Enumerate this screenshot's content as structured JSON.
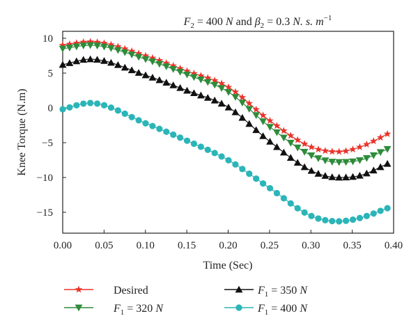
{
  "chart_data": {
    "type": "line",
    "title": {
      "f2_symbol": "F",
      "f2_sub": "2",
      "f2_value": " = 400 ",
      "f2_unit": "N",
      "and_text": " and ",
      "beta_symbol": "β",
      "beta_sub": "2",
      "beta_value": " = 0.3 ",
      "beta_unit": "N. s. m",
      "beta_exp": "−1"
    },
    "xlabel": "Time (Sec)",
    "ylabel": "Knee Torque (N.m)",
    "xlim": [
      0,
      0.4
    ],
    "ylim": [
      -18,
      11
    ],
    "x_ticks": [
      0.0,
      0.05,
      0.1,
      0.15,
      0.2,
      0.25,
      0.3,
      0.35,
      0.4
    ],
    "x_tick_labels": [
      "0.00",
      "0.05",
      "0.10",
      "0.15",
      "0.20",
      "0.25",
      "0.30",
      "0.35",
      "0.40"
    ],
    "y_ticks": [
      10,
      5,
      0,
      -5,
      -10,
      -15
    ],
    "y_tick_labels": [
      "10",
      "5",
      "0",
      "−5",
      "−10",
      "−15"
    ],
    "grid": false,
    "legend_position": "bottom",
    "series": [
      {
        "name": "Desired",
        "legend_main": "Desired",
        "marker": "star",
        "color": "#e8332a",
        "x": [
          0.0,
          0.033,
          0.1,
          0.15,
          0.2,
          0.25,
          0.3,
          0.333,
          0.36,
          0.395
        ],
        "y": [
          9.0,
          9.5,
          7.5,
          5.3,
          3.0,
          -1.8,
          -5.6,
          -6.3,
          -5.6,
          -3.6
        ]
      },
      {
        "name": "F1 = 320 N",
        "legend_sym": "F",
        "legend_sub": "1",
        "legend_rest": " = 320 ",
        "legend_unit": "N",
        "marker": "triangle-down",
        "color": "#2e8b3a",
        "x": [
          0.0,
          0.033,
          0.1,
          0.15,
          0.2,
          0.25,
          0.3,
          0.333,
          0.36,
          0.395
        ],
        "y": [
          8.5,
          9.0,
          7.0,
          4.8,
          2.3,
          -2.7,
          -6.8,
          -7.8,
          -7.5,
          -5.8
        ]
      },
      {
        "name": "F1 = 350 N",
        "legend_sym": "F",
        "legend_sub": "1",
        "legend_rest": " = 350 ",
        "legend_unit": "N",
        "marker": "triangle-up",
        "color": "#111111",
        "x": [
          0.0,
          0.033,
          0.1,
          0.15,
          0.2,
          0.25,
          0.3,
          0.333,
          0.36,
          0.395
        ],
        "y": [
          6.2,
          7.0,
          4.7,
          2.5,
          0.1,
          -4.8,
          -9.0,
          -10.0,
          -9.7,
          -7.9
        ]
      },
      {
        "name": "F1 = 400 N",
        "legend_sym": "F",
        "legend_sub": "1",
        "legend_rest": " = 400 ",
        "legend_unit": "N",
        "marker": "circle",
        "color": "#2bb5b8",
        "x": [
          0.0,
          0.033,
          0.1,
          0.15,
          0.2,
          0.25,
          0.3,
          0.333,
          0.36,
          0.395
        ],
        "y": [
          -0.2,
          0.7,
          -2.2,
          -4.7,
          -7.5,
          -11.5,
          -15.5,
          -16.3,
          -15.8,
          -14.3
        ]
      }
    ]
  }
}
